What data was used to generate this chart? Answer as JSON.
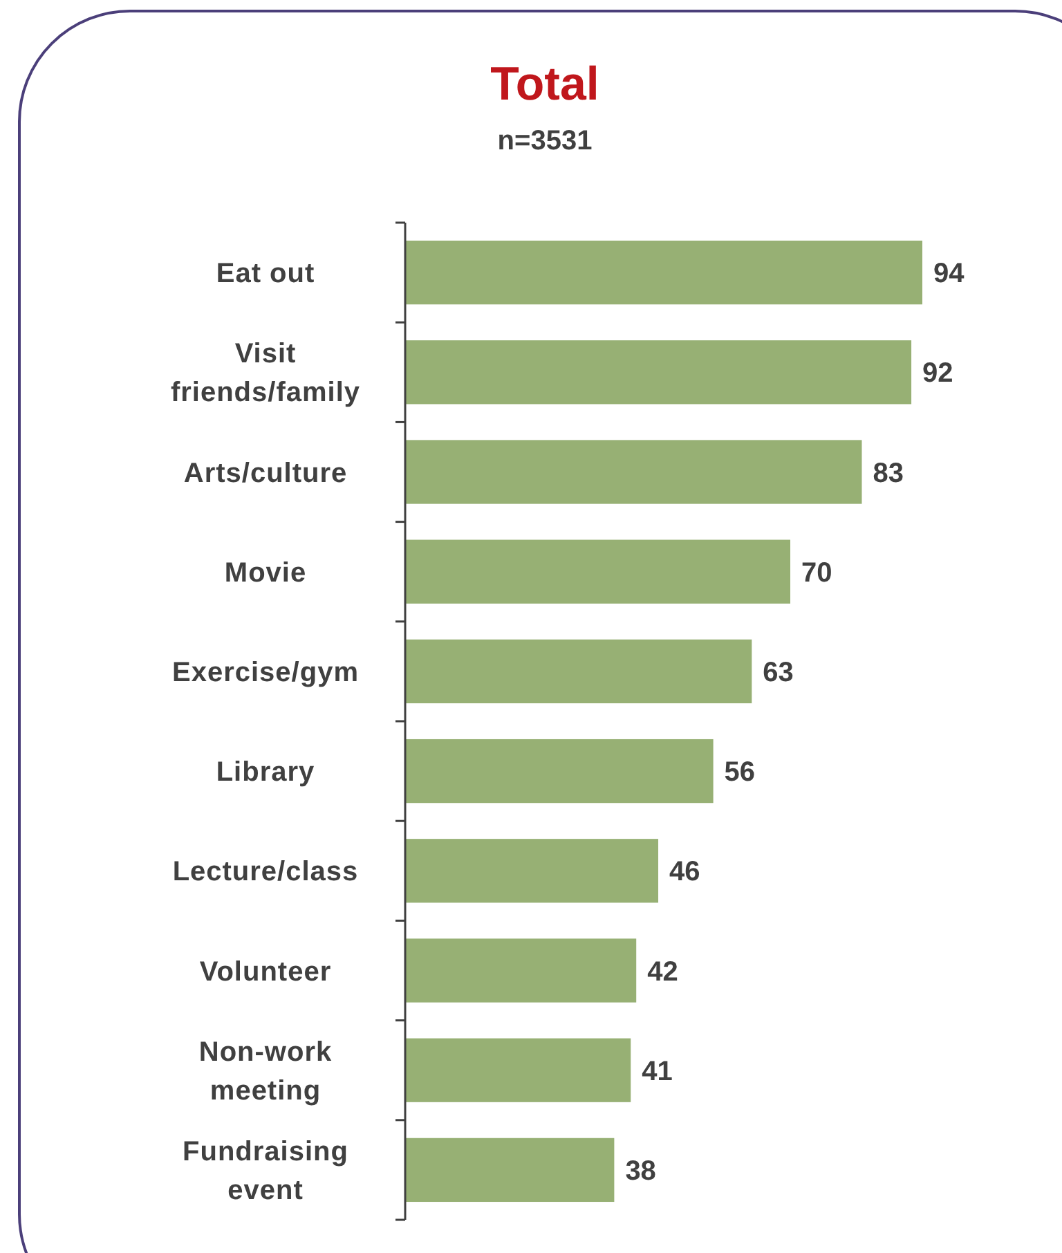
{
  "chart_data": {
    "type": "bar",
    "orientation": "horizontal",
    "title": "Total",
    "subtitle": "n=3531",
    "categories": [
      "Eat out",
      "Visit friends/family",
      "Arts/culture",
      "Movie",
      "Exercise/gym",
      "Library",
      "Lecture/class",
      "Volunteer",
      "Non-work meeting",
      "Fundraising event"
    ],
    "values": [
      94,
      92,
      83,
      70,
      63,
      56,
      46,
      42,
      41,
      38
    ],
    "color": "#97b074",
    "tick_labels": "y",
    "data_labels": true
  }
}
